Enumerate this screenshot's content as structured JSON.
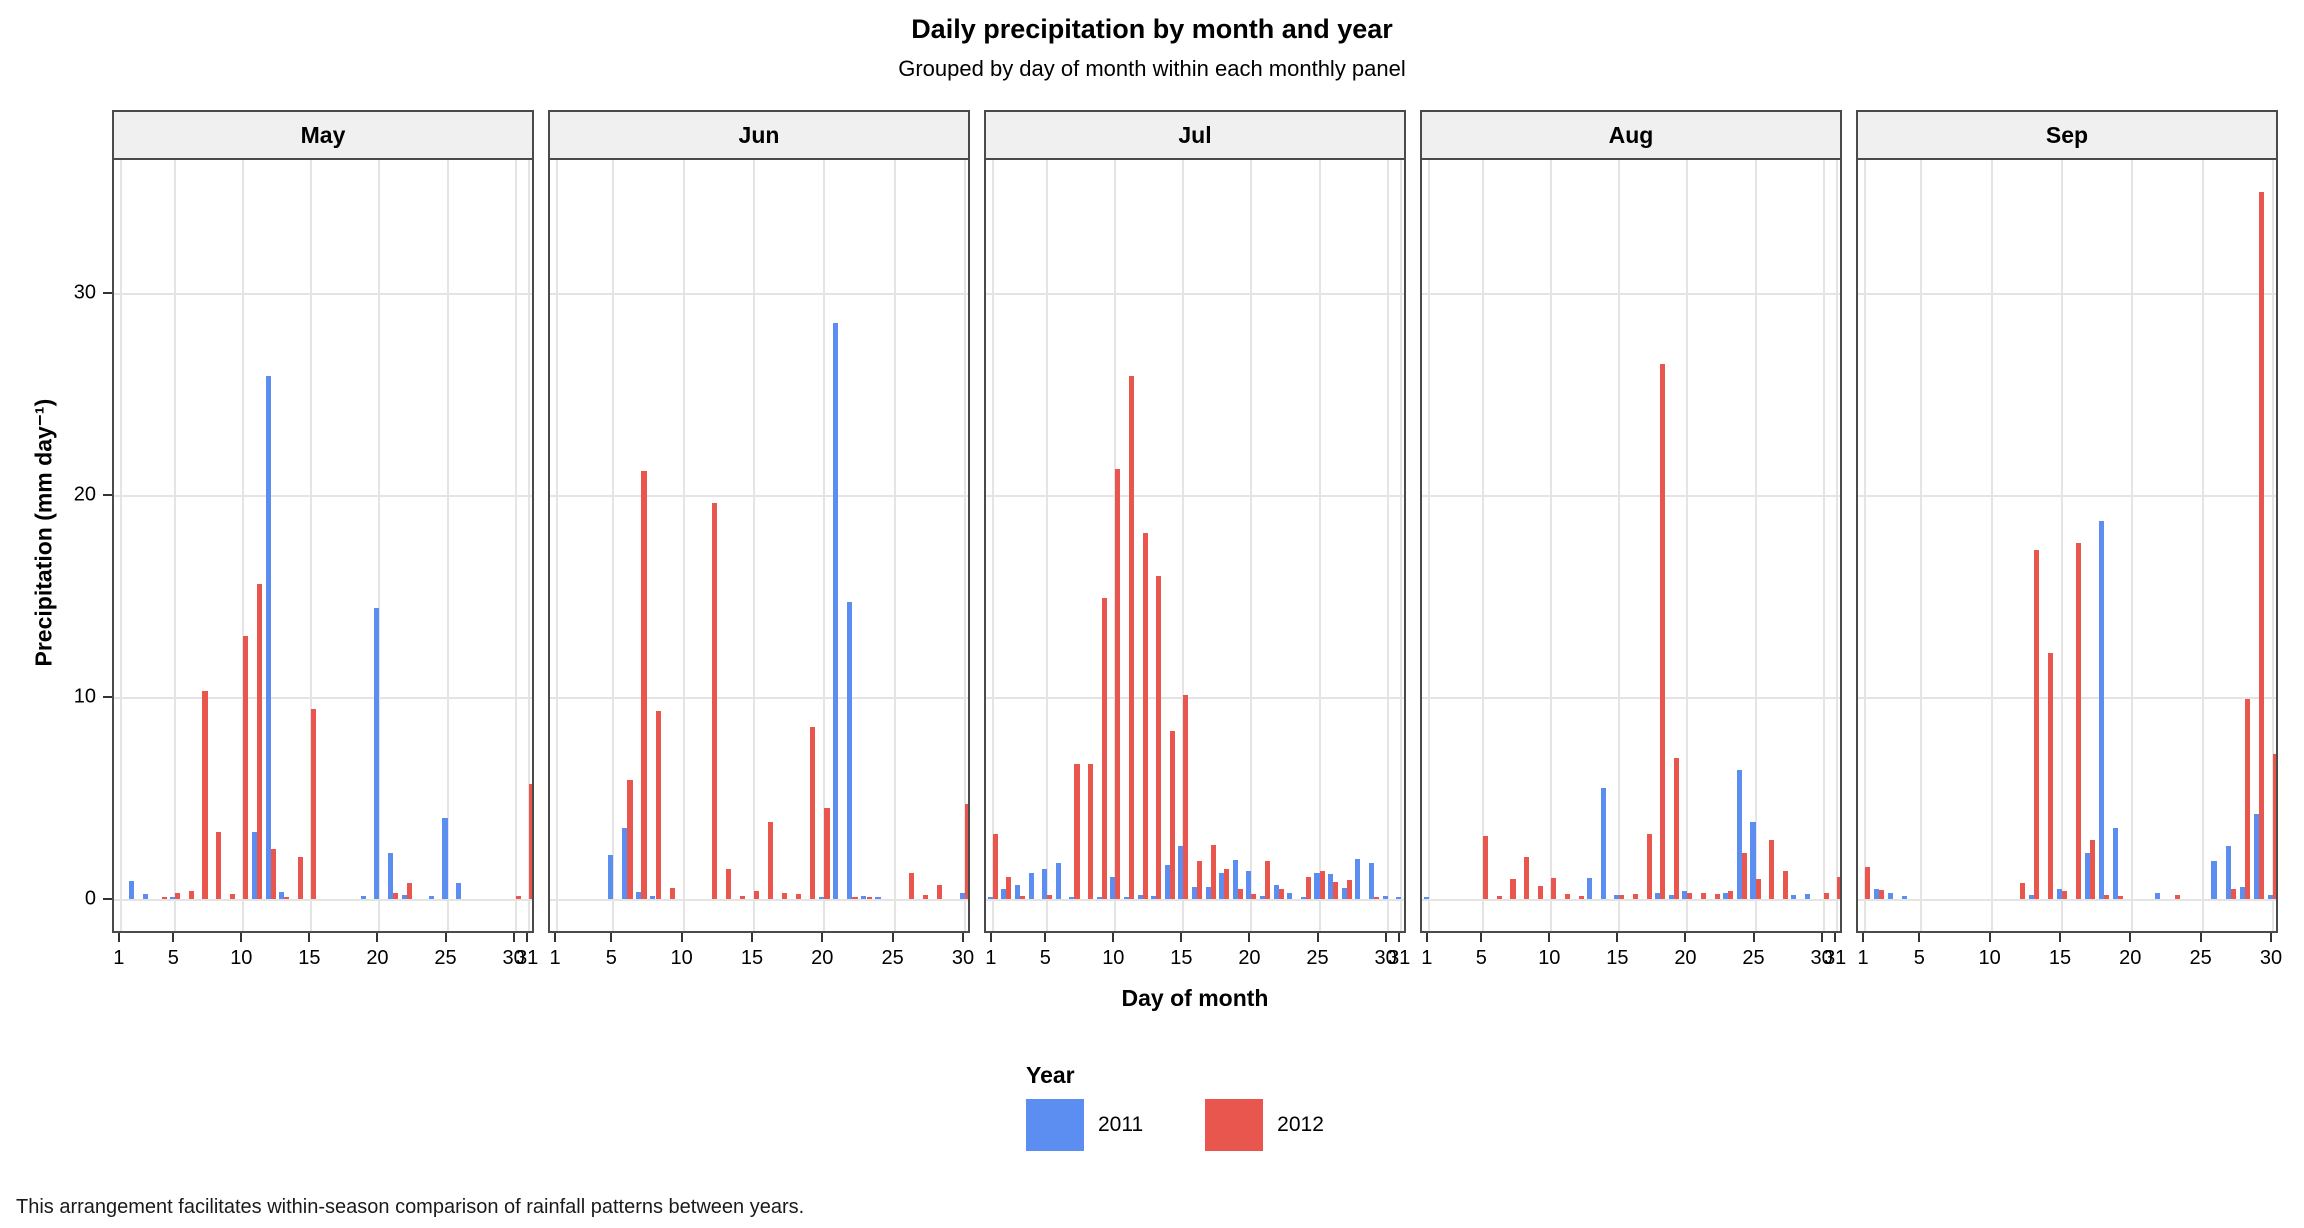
{
  "title": "Daily precipitation by month and year",
  "subtitle": "Grouped by day of month within each monthly panel",
  "caption": "This arrangement facilitates within-season comparison of rainfall patterns between years.",
  "legend": {
    "title": "Year",
    "series": [
      {
        "label": "2011",
        "color": "#5b8ef0"
      },
      {
        "label": "2012",
        "color": "#e8564e"
      }
    ]
  },
  "colors": {
    "year_2011": "#5b8ef0",
    "year_2012": "#e8564e",
    "strip_background": "#f0f0f0",
    "panel_border": "#4a4a4a",
    "gridline": "#e4e4e4"
  },
  "chart_data": {
    "type": "bar",
    "grouping": "dodged",
    "title": "Daily precipitation by month and year",
    "subtitle": "Grouped by day of month within each monthly panel",
    "xlabel": "Day of month",
    "ylabel": "Precipitation (mm day⁻¹)",
    "y_ticks": [
      0,
      10,
      20,
      30
    ],
    "ylim": [
      0,
      36.6
    ],
    "grid": true,
    "legend_position": "bottom",
    "facets": [
      {
        "month": "May",
        "days_in_month": 31,
        "x_tick_days": [
          1,
          5,
          10,
          15,
          20,
          25,
          30,
          31
        ],
        "series": [
          {
            "name": "2011",
            "values": {
              "2": 0.9,
              "3": 0.25,
              "5": 0.1,
              "11": 3.3,
              "12": 25.9,
              "13": 0.35,
              "19": 0.15,
              "20": 14.4,
              "21": 2.3,
              "22": 0.2,
              "24": 0.15,
              "25": 4.0,
              "26": 0.8
            }
          },
          {
            "name": "2012",
            "values": {
              "4": 0.1,
              "5": 0.3,
              "6": 0.4,
              "7": 10.3,
              "8": 3.3,
              "9": 0.25,
              "10": 13.0,
              "11": 15.6,
              "12": 2.5,
              "13": 0.1,
              "14": 2.1,
              "15": 9.4,
              "21": 0.3,
              "22": 0.8,
              "30": 0.15,
              "31": 5.7
            }
          }
        ]
      },
      {
        "month": "Jun",
        "days_in_month": 30,
        "x_tick_days": [
          1,
          5,
          10,
          15,
          20,
          25,
          30
        ],
        "series": [
          {
            "name": "2011",
            "values": {
              "5": 2.2,
              "6": 3.5,
              "7": 0.35,
              "8": 0.15,
              "20": 0.1,
              "21": 28.5,
              "22": 14.7,
              "23": 0.15,
              "24": 0.1,
              "30": 0.3
            }
          },
          {
            "name": "2012",
            "values": {
              "6": 5.9,
              "7": 21.2,
              "8": 9.3,
              "9": 0.55,
              "12": 19.6,
              "13": 1.5,
              "14": 0.15,
              "15": 0.4,
              "16": 3.8,
              "17": 0.3,
              "18": 0.25,
              "19": 8.5,
              "20": 4.5,
              "22": 0.1,
              "23": 0.1,
              "26": 1.3,
              "27": 0.2,
              "28": 0.7,
              "30": 4.7
            }
          }
        ]
      },
      {
        "month": "Jul",
        "days_in_month": 31,
        "x_tick_days": [
          1,
          5,
          10,
          15,
          20,
          25,
          30,
          31
        ],
        "series": [
          {
            "name": "2011",
            "values": {
              "1": 0.1,
              "2": 0.5,
              "3": 0.7,
              "4": 1.3,
              "5": 1.5,
              "6": 1.8,
              "7": 0.1,
              "9": 0.1,
              "10": 1.1,
              "11": 0.1,
              "12": 0.2,
              "13": 0.15,
              "14": 1.7,
              "15": 2.6,
              "16": 0.6,
              "17": 0.6,
              "18": 1.3,
              "19": 1.95,
              "20": 1.4,
              "21": 0.15,
              "22": 0.7,
              "23": 0.3,
              "24": 0.1,
              "25": 1.3,
              "26": 1.25,
              "27": 0.55,
              "28": 2.0,
              "29": 1.8,
              "30": 0.15,
              "31": 0.1
            }
          },
          {
            "name": "2012",
            "values": {
              "1": 3.2,
              "2": 1.1,
              "3": 0.15,
              "5": 0.2,
              "7": 6.7,
              "8": 6.7,
              "9": 14.9,
              "10": 21.3,
              "11": 25.9,
              "12": 18.1,
              "13": 16.0,
              "14": 8.3,
              "15": 10.1,
              "16": 1.9,
              "17": 2.65,
              "18": 1.5,
              "19": 0.5,
              "20": 0.25,
              "21": 1.9,
              "22": 0.5,
              "24": 1.1,
              "25": 1.4,
              "26": 0.85,
              "27": 0.95,
              "29": 0.1
            }
          }
        ]
      },
      {
        "month": "Aug",
        "days_in_month": 31,
        "x_tick_days": [
          1,
          5,
          10,
          15,
          20,
          25,
          30,
          31
        ],
        "series": [
          {
            "name": "2011",
            "values": {
              "1": 0.1,
              "13": 1.05,
              "14": 5.5,
              "15": 0.2,
              "18": 0.3,
              "19": 0.2,
              "20": 0.4,
              "23": 0.3,
              "24": 6.4,
              "25": 3.8,
              "28": 0.2,
              "29": 0.25
            }
          },
          {
            "name": "2012",
            "values": {
              "5": 3.1,
              "6": 0.15,
              "7": 1.0,
              "8": 2.1,
              "9": 0.65,
              "10": 1.05,
              "11": 0.25,
              "12": 0.15,
              "15": 0.2,
              "16": 0.25,
              "17": 3.2,
              "18": 26.5,
              "19": 7.0,
              "20": 0.3,
              "21": 0.3,
              "22": 0.25,
              "23": 0.4,
              "24": 2.3,
              "25": 1.0,
              "26": 2.9,
              "27": 1.4,
              "30": 0.3,
              "31": 1.1
            }
          }
        ]
      },
      {
        "month": "Sep",
        "days_in_month": 30,
        "x_tick_days": [
          1,
          5,
          10,
          15,
          20,
          25,
          30
        ],
        "series": [
          {
            "name": "2011",
            "values": {
              "2": 0.5,
              "3": 0.3,
              "4": 0.15,
              "13": 0.2,
              "15": 0.5,
              "17": 2.3,
              "18": 18.7,
              "19": 3.5,
              "22": 0.3,
              "26": 1.9,
              "27": 2.6,
              "28": 0.6,
              "29": 4.2,
              "30": 0.2
            }
          },
          {
            "name": "2012",
            "values": {
              "1": 1.6,
              "2": 0.45,
              "12": 0.8,
              "13": 17.3,
              "14": 12.2,
              "15": 0.4,
              "16": 17.6,
              "17": 2.9,
              "18": 0.2,
              "19": 0.15,
              "23": 0.2,
              "27": 0.5,
              "28": 9.9,
              "29": 35.0,
              "30": 7.2
            }
          }
        ]
      }
    ]
  }
}
